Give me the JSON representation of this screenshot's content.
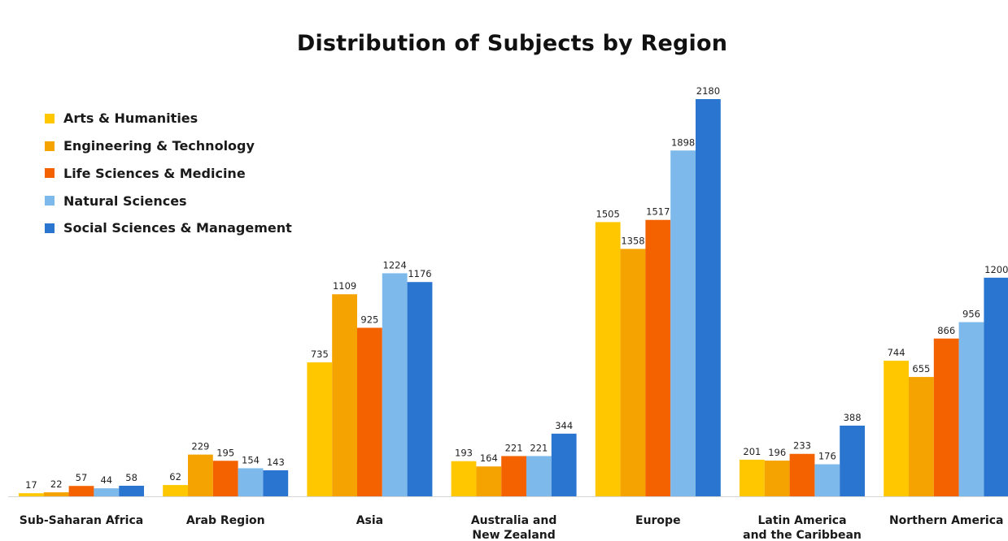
{
  "chart_data": {
    "type": "bar",
    "title": "Distribution of Subjects by Region",
    "xlabel": "",
    "ylabel": "",
    "ylim": [
      0,
      2180
    ],
    "grid": false,
    "legend_position": "top-left",
    "categories": [
      [
        "Sub-Saharan Africa"
      ],
      [
        "Arab Region"
      ],
      [
        "Asia"
      ],
      [
        "Australia and",
        "New Zealand"
      ],
      [
        "Europe"
      ],
      [
        "Latin America",
        "and the Caribbean"
      ],
      [
        "Northern America"
      ]
    ],
    "series": [
      {
        "name": "Arts & Humanities",
        "color": "#FFC700",
        "values": [
          17,
          62,
          735,
          193,
          1505,
          201,
          744
        ]
      },
      {
        "name": "Engineering & Technology",
        "color": "#F5A300",
        "values": [
          22,
          229,
          1109,
          164,
          1358,
          196,
          655
        ]
      },
      {
        "name": "Life Sciences & Medicine",
        "color": "#F46200",
        "values": [
          57,
          195,
          925,
          221,
          1517,
          233,
          866
        ]
      },
      {
        "name": "Natural Sciences",
        "color": "#7DB9EA",
        "values": [
          44,
          154,
          1224,
          221,
          1898,
          176,
          956
        ]
      },
      {
        "name": "Social Sciences & Management",
        "color": "#2A75CF",
        "values": [
          58,
          143,
          1176,
          344,
          2180,
          388,
          1200
        ]
      }
    ]
  }
}
